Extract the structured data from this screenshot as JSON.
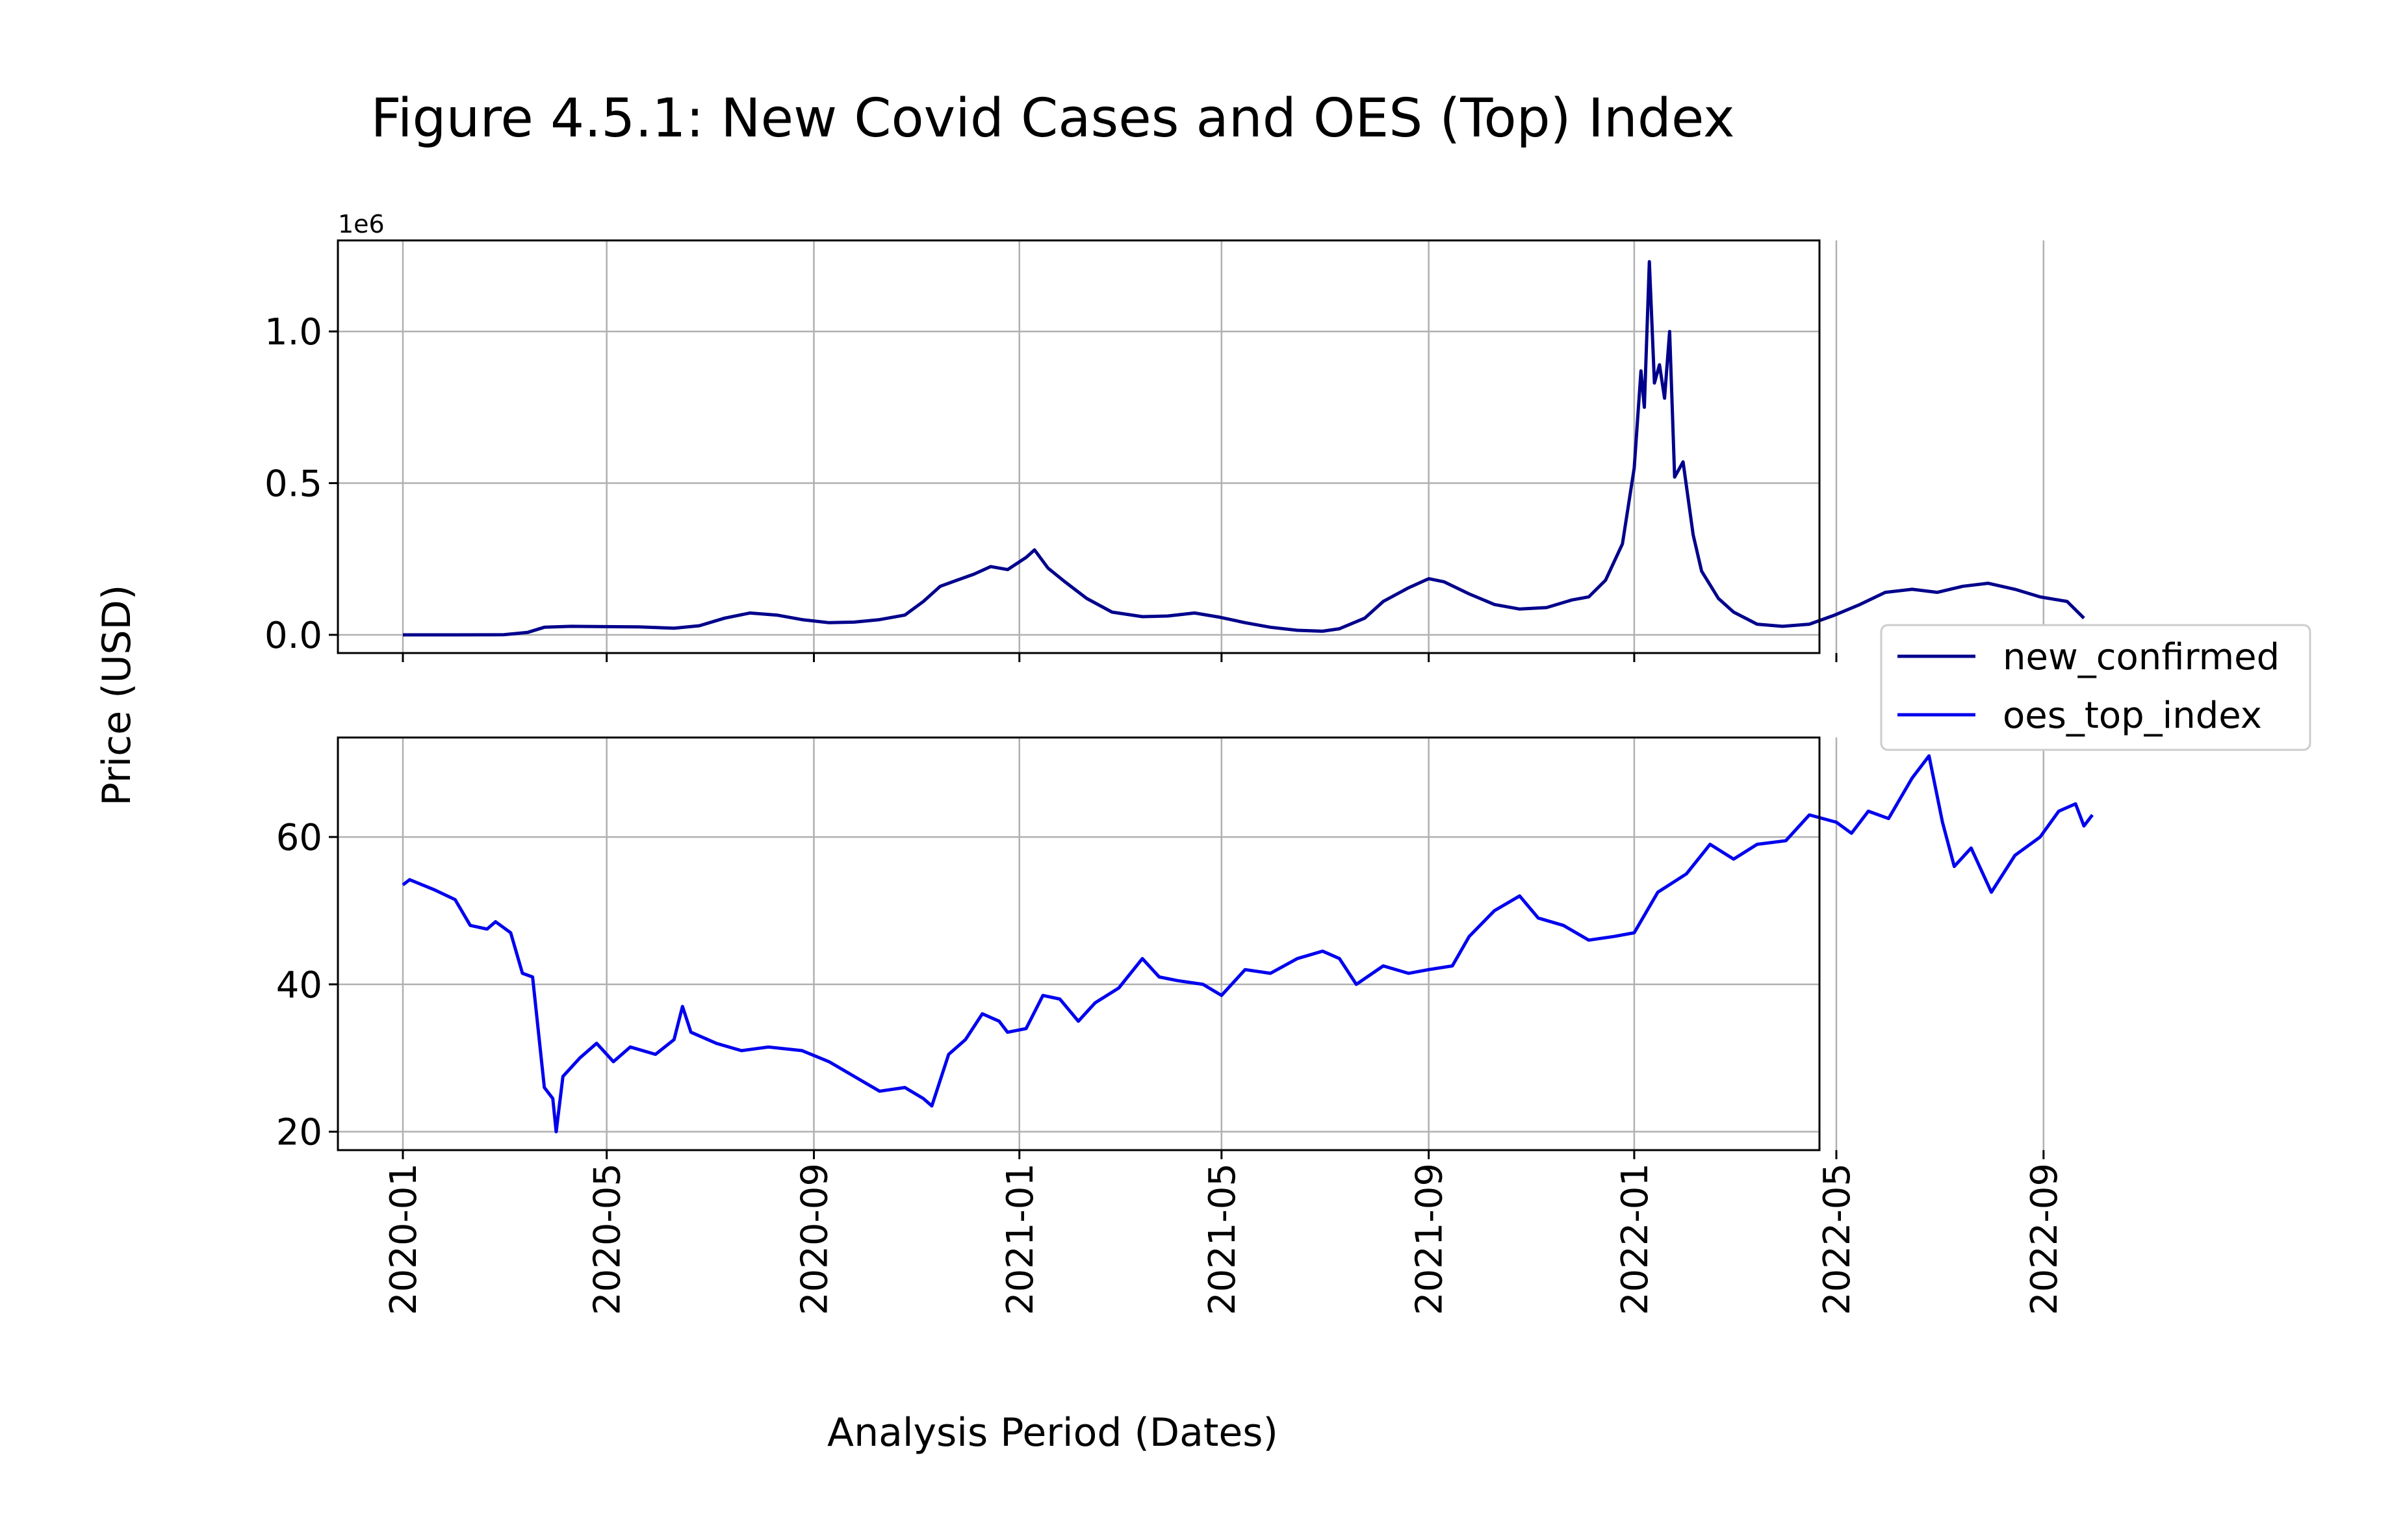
{
  "chart_data": {
    "type": "line",
    "title": "Figure 4.5.1: New Covid Cases and OES (Top) Index",
    "xlabel": "Analysis Period (Dates)",
    "ylabel": "Price (USD)",
    "x_ticks": [
      "2020-01",
      "2020-05",
      "2020-09",
      "2021-01",
      "2021-05",
      "2021-09",
      "2022-01",
      "2022-05",
      "2022-09"
    ],
    "x_range": [
      "2020-01-01",
      "2022-09-30"
    ],
    "grid": true,
    "legend_position": "center right, outside plots",
    "legend": [
      "new_confirmed",
      "oes_top_index"
    ],
    "panels": [
      {
        "series_name": "new_confirmed",
        "color": "#00008b",
        "y_offset_text": "1e6",
        "y_ticks": [
          "0.0",
          "0.5",
          "1.0"
        ],
        "y_tick_values": [
          0,
          500000,
          1000000
        ],
        "ylim": [
          -60000,
          1300000
        ],
        "points": [
          [
            "2020-01-01",
            0
          ],
          [
            "2020-02-01",
            0
          ],
          [
            "2020-03-01",
            500
          ],
          [
            "2020-03-15",
            8000
          ],
          [
            "2020-03-25",
            25000
          ],
          [
            "2020-04-10",
            28000
          ],
          [
            "2020-05-01",
            27000
          ],
          [
            "2020-05-20",
            26000
          ],
          [
            "2020-06-10",
            22000
          ],
          [
            "2020-06-25",
            30000
          ],
          [
            "2020-07-10",
            55000
          ],
          [
            "2020-07-25",
            72000
          ],
          [
            "2020-08-10",
            65000
          ],
          [
            "2020-08-25",
            50000
          ],
          [
            "2020-09-10",
            40000
          ],
          [
            "2020-09-25",
            42000
          ],
          [
            "2020-10-10",
            50000
          ],
          [
            "2020-10-25",
            65000
          ],
          [
            "2020-11-05",
            110000
          ],
          [
            "2020-11-15",
            160000
          ],
          [
            "2020-11-25",
            180000
          ],
          [
            "2020-12-05",
            200000
          ],
          [
            "2020-12-15",
            225000
          ],
          [
            "2020-12-25",
            215000
          ],
          [
            "2021-01-05",
            255000
          ],
          [
            "2021-01-10",
            280000
          ],
          [
            "2021-01-18",
            220000
          ],
          [
            "2021-01-28",
            175000
          ],
          [
            "2021-02-10",
            120000
          ],
          [
            "2021-02-25",
            75000
          ],
          [
            "2021-03-15",
            60000
          ],
          [
            "2021-03-30",
            62000
          ],
          [
            "2021-04-15",
            72000
          ],
          [
            "2021-04-30",
            58000
          ],
          [
            "2021-05-15",
            40000
          ],
          [
            "2021-05-30",
            25000
          ],
          [
            "2021-06-15",
            15000
          ],
          [
            "2021-06-30",
            12000
          ],
          [
            "2021-07-10",
            20000
          ],
          [
            "2021-07-25",
            55000
          ],
          [
            "2021-08-05",
            110000
          ],
          [
            "2021-08-20",
            155000
          ],
          [
            "2021-09-01",
            185000
          ],
          [
            "2021-09-10",
            175000
          ],
          [
            "2021-09-25",
            135000
          ],
          [
            "2021-10-10",
            100000
          ],
          [
            "2021-10-25",
            85000
          ],
          [
            "2021-11-10",
            90000
          ],
          [
            "2021-11-25",
            115000
          ],
          [
            "2021-12-05",
            125000
          ],
          [
            "2021-12-15",
            180000
          ],
          [
            "2021-12-25",
            300000
          ],
          [
            "2022-01-01",
            550000
          ],
          [
            "2022-01-05",
            870000
          ],
          [
            "2022-01-07",
            750000
          ],
          [
            "2022-01-10",
            1230000
          ],
          [
            "2022-01-13",
            830000
          ],
          [
            "2022-01-16",
            890000
          ],
          [
            "2022-01-19",
            780000
          ],
          [
            "2022-01-22",
            1000000
          ],
          [
            "2022-01-25",
            520000
          ],
          [
            "2022-01-30",
            570000
          ],
          [
            "2022-02-05",
            330000
          ],
          [
            "2022-02-10",
            210000
          ],
          [
            "2022-02-20",
            120000
          ],
          [
            "2022-03-01",
            75000
          ],
          [
            "2022-03-15",
            35000
          ],
          [
            "2022-03-30",
            28000
          ],
          [
            "2022-04-15",
            35000
          ],
          [
            "2022-04-30",
            65000
          ],
          [
            "2022-05-15",
            100000
          ],
          [
            "2022-05-30",
            140000
          ],
          [
            "2022-06-15",
            150000
          ],
          [
            "2022-06-30",
            140000
          ],
          [
            "2022-07-15",
            160000
          ],
          [
            "2022-07-30",
            170000
          ],
          [
            "2022-08-15",
            150000
          ],
          [
            "2022-08-30",
            125000
          ],
          [
            "2022-09-15",
            110000
          ],
          [
            "2022-09-25",
            55000
          ]
        ]
      },
      {
        "series_name": "oes_top_index",
        "color": "#0000ee",
        "y_ticks": [
          "20",
          "40",
          "60"
        ],
        "y_tick_values": [
          20,
          40,
          60
        ],
        "ylim": [
          17.5,
          73.5
        ],
        "points": [
          [
            "2020-01-01",
            53.5
          ],
          [
            "2020-01-05",
            54.2
          ],
          [
            "2020-01-20",
            52.8
          ],
          [
            "2020-02-01",
            51.5
          ],
          [
            "2020-02-10",
            48.0
          ],
          [
            "2020-02-20",
            47.5
          ],
          [
            "2020-02-25",
            48.5
          ],
          [
            "2020-03-05",
            47.0
          ],
          [
            "2020-03-12",
            41.5
          ],
          [
            "2020-03-18",
            41.0
          ],
          [
            "2020-03-25",
            26.0
          ],
          [
            "2020-03-30",
            24.5
          ],
          [
            "2020-04-01",
            20.0
          ],
          [
            "2020-04-05",
            27.5
          ],
          [
            "2020-04-15",
            30.0
          ],
          [
            "2020-04-25",
            32.0
          ],
          [
            "2020-05-05",
            29.5
          ],
          [
            "2020-05-15",
            31.5
          ],
          [
            "2020-05-30",
            30.5
          ],
          [
            "2020-06-10",
            32.5
          ],
          [
            "2020-06-15",
            37.0
          ],
          [
            "2020-06-20",
            33.5
          ],
          [
            "2020-07-05",
            32.0
          ],
          [
            "2020-07-20",
            31.0
          ],
          [
            "2020-08-05",
            31.5
          ],
          [
            "2020-08-25",
            31.0
          ],
          [
            "2020-09-10",
            29.5
          ],
          [
            "2020-09-25",
            27.5
          ],
          [
            "2020-10-10",
            25.5
          ],
          [
            "2020-10-25",
            26.0
          ],
          [
            "2020-11-05",
            24.5
          ],
          [
            "2020-11-10",
            23.5
          ],
          [
            "2020-11-20",
            30.5
          ],
          [
            "2020-11-30",
            32.5
          ],
          [
            "2020-12-10",
            36.0
          ],
          [
            "2020-12-20",
            35.0
          ],
          [
            "2020-12-25",
            33.5
          ],
          [
            "2021-01-05",
            34.0
          ],
          [
            "2021-01-15",
            38.5
          ],
          [
            "2021-01-25",
            38.0
          ],
          [
            "2021-02-05",
            35.0
          ],
          [
            "2021-02-15",
            37.5
          ],
          [
            "2021-03-01",
            39.5
          ],
          [
            "2021-03-15",
            43.5
          ],
          [
            "2021-03-25",
            41.0
          ],
          [
            "2021-04-05",
            40.5
          ],
          [
            "2021-04-20",
            40.0
          ],
          [
            "2021-05-01",
            38.5
          ],
          [
            "2021-05-15",
            42.0
          ],
          [
            "2021-05-30",
            41.5
          ],
          [
            "2021-06-15",
            43.5
          ],
          [
            "2021-06-30",
            44.5
          ],
          [
            "2021-07-10",
            43.5
          ],
          [
            "2021-07-20",
            40.0
          ],
          [
            "2021-08-05",
            42.5
          ],
          [
            "2021-08-20",
            41.5
          ],
          [
            "2021-09-01",
            42.0
          ],
          [
            "2021-09-15",
            42.5
          ],
          [
            "2021-09-25",
            46.5
          ],
          [
            "2021-10-10",
            50.0
          ],
          [
            "2021-10-25",
            52.0
          ],
          [
            "2021-11-05",
            49.0
          ],
          [
            "2021-11-20",
            48.0
          ],
          [
            "2021-12-05",
            46.0
          ],
          [
            "2021-12-20",
            46.5
          ],
          [
            "2022-01-01",
            47.0
          ],
          [
            "2022-01-15",
            52.5
          ],
          [
            "2022-02-01",
            55.0
          ],
          [
            "2022-02-15",
            59.0
          ],
          [
            "2022-03-01",
            57.0
          ],
          [
            "2022-03-15",
            59.0
          ],
          [
            "2022-04-01",
            59.5
          ],
          [
            "2022-04-15",
            63.0
          ],
          [
            "2022-05-01",
            62.0
          ],
          [
            "2022-05-10",
            60.5
          ],
          [
            "2022-05-20",
            63.5
          ],
          [
            "2022-06-01",
            62.5
          ],
          [
            "2022-06-15",
            68.0
          ],
          [
            "2022-06-25",
            71.0
          ],
          [
            "2022-07-03",
            62.0
          ],
          [
            "2022-07-10",
            56.0
          ],
          [
            "2022-07-20",
            58.5
          ],
          [
            "2022-08-01",
            52.5
          ],
          [
            "2022-08-15",
            57.5
          ],
          [
            "2022-08-30",
            60.0
          ],
          [
            "2022-09-10",
            63.5
          ],
          [
            "2022-09-20",
            64.5
          ],
          [
            "2022-09-25",
            61.5
          ],
          [
            "2022-09-30",
            63.0
          ]
        ]
      }
    ]
  }
}
